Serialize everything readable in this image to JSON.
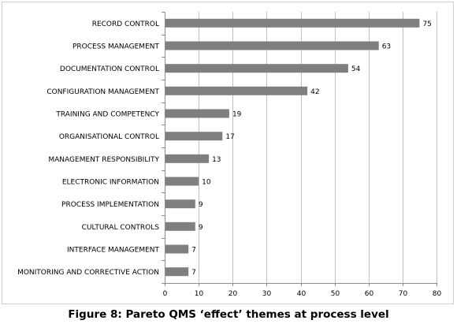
{
  "caption": "Figure 8: Pareto QMS ‘effect’ themes at process level",
  "chart_data": {
    "type": "bar",
    "orientation": "horizontal",
    "title": "",
    "xlabel": "",
    "ylabel": "",
    "categories": [
      "RECORD CONTROL",
      "PROCESS MANAGEMENT",
      "DOCUMENTATION CONTROL",
      "CONFIGURATION MANAGEMENT",
      "TRAINING AND COMPETENCY",
      "ORGANISATIONAL CONTROL",
      "MANAGEMENT RESPONSIBILITY",
      "ELECTRONIC INFORMATION",
      "PROCESS IMPLEMENTATION",
      "CULTURAL CONTROLS",
      "INTERFACE MANAGEMENT",
      "MONITORING AND CORRECTIVE ACTION"
    ],
    "values": [
      75,
      63,
      54,
      42,
      19,
      17,
      13,
      10,
      9,
      9,
      7,
      7
    ],
    "xlim": [
      0,
      80
    ],
    "xticks": [
      0,
      10,
      20,
      30,
      40,
      50,
      60,
      70,
      80
    ],
    "grid": "vertical",
    "legend": "none",
    "bar_color": "#7f7f7f"
  }
}
